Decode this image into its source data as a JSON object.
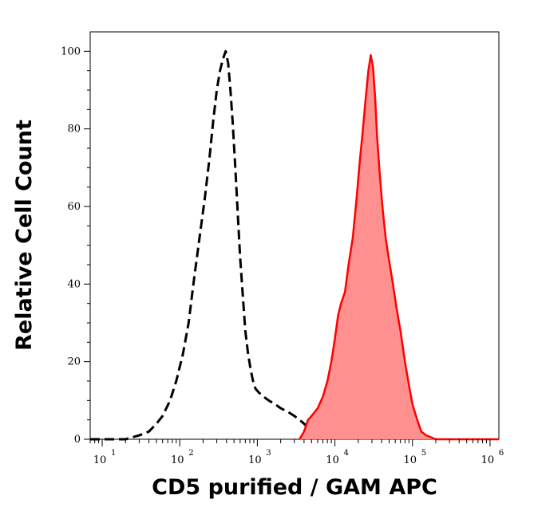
{
  "chart_data": {
    "type": "area",
    "xlabel": "CD5 purified / GAM APC",
    "ylabel": "Relative Cell Count",
    "x_scale": "log",
    "xlim": [
      7,
      1300000
    ],
    "ylim": [
      0,
      105
    ],
    "x_ticks": [
      {
        "base": "10",
        "exp": "1",
        "value": 10
      },
      {
        "base": "10",
        "exp": "2",
        "value": 100
      },
      {
        "base": "10",
        "exp": "3",
        "value": 1000
      },
      {
        "base": "10",
        "exp": "4",
        "value": 10000
      },
      {
        "base": "10",
        "exp": "5",
        "value": 100000
      },
      {
        "base": "10",
        "exp": "6",
        "value": 1000000
      }
    ],
    "y_ticks": [
      {
        "label": "0",
        "value": 0
      },
      {
        "label": "20",
        "value": 20
      },
      {
        "label": "40",
        "value": 40
      },
      {
        "label": "60",
        "value": 60
      },
      {
        "label": "80",
        "value": 80
      },
      {
        "label": "100",
        "value": 100
      }
    ],
    "grid": false,
    "colors": {
      "control": "#000000",
      "stained_line": "#ff0000",
      "stained_fill": "#ff9090"
    },
    "series": [
      {
        "style": "dashed-black",
        "x": [
          7,
          12,
          20,
          30,
          40,
          50,
          60,
          75,
          90,
          110,
          130,
          150,
          180,
          210,
          240,
          270,
          300,
          330,
          360,
          390,
          420,
          450,
          480,
          520,
          560,
          600,
          650,
          700,
          760,
          820,
          880,
          950,
          1050,
          1200,
          1400,
          1700,
          2000,
          2500,
          3000,
          3500,
          4000,
          4500
        ],
        "y": [
          0,
          0,
          0,
          1,
          2,
          4,
          6,
          10,
          15,
          22,
          30,
          40,
          52,
          62,
          72,
          82,
          90,
          95,
          98,
          100,
          97,
          90,
          82,
          70,
          58,
          47,
          37,
          28,
          22,
          18,
          15,
          13,
          12,
          11,
          10,
          9,
          8,
          7,
          6,
          5,
          4,
          3
        ]
      },
      {
        "style": "filled-red",
        "x": [
          3500,
          4000,
          4500,
          5000,
          6000,
          7000,
          8000,
          9000,
          10000,
          11000,
          12000,
          13500,
          15000,
          17000,
          19000,
          21000,
          23000,
          25000,
          27000,
          29000,
          31000,
          33000,
          35000,
          38000,
          41000,
          45000,
          50000,
          56000,
          62000,
          70000,
          80000,
          90000,
          100000,
          115000,
          130000,
          150000,
          200000,
          300000,
          500000,
          800000,
          1300000
        ],
        "y": [
          0,
          2,
          5,
          6,
          8,
          11,
          15,
          20,
          26,
          32,
          35,
          38,
          45,
          52,
          62,
          72,
          80,
          88,
          95,
          99,
          96,
          88,
          78,
          68,
          60,
          52,
          46,
          40,
          34,
          28,
          20,
          14,
          9,
          5,
          2,
          1,
          0,
          0,
          0,
          0,
          0
        ]
      }
    ]
  }
}
